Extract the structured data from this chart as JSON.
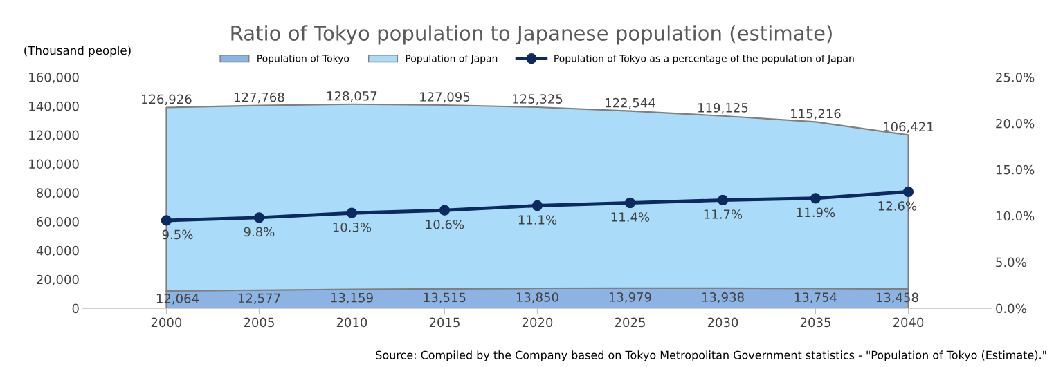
{
  "chart_data": {
    "type": "area",
    "title": "Ratio of Tokyo population to Japanese population (estimate)",
    "ylabel": "(Thousand people)",
    "categories": [
      "2000",
      "2005",
      "2010",
      "2015",
      "2020",
      "2025",
      "2030",
      "2035",
      "2040"
    ],
    "stacked": true,
    "series": [
      {
        "name": "Population of Tokyo",
        "color": "#8db3e2",
        "values": [
          12064,
          12577,
          13159,
          13515,
          13850,
          13979,
          13938,
          13754,
          13458
        ],
        "value_labels": [
          "12,064",
          "12,577",
          "13,159",
          "13,515",
          "13,850",
          "13,979",
          "13,938",
          "13,754",
          "13,458"
        ]
      },
      {
        "name": "Population of Japan",
        "color": "#aadcf9",
        "values": [
          126926,
          127768,
          128057,
          127095,
          125325,
          122544,
          119125,
          115216,
          106421
        ],
        "value_labels": [
          "126,926",
          "127,768",
          "128,057",
          "127,095",
          "125,325",
          "122,544",
          "119,125",
          "115,216",
          "106,421"
        ]
      },
      {
        "name": "Population of Tokyo as a percentage of the population of Japan",
        "type": "line",
        "axis": "y2",
        "marker": "circle",
        "color": "#0c2a5e",
        "values": [
          9.5,
          9.8,
          10.3,
          10.6,
          11.1,
          11.4,
          11.7,
          11.9,
          12.6
        ],
        "value_labels": [
          "9.5%",
          "9.8%",
          "10.3%",
          "10.6%",
          "11.1%",
          "11.4%",
          "11.7%",
          "11.9%",
          "12.6%"
        ]
      }
    ],
    "ylim": [
      0,
      160000
    ],
    "yticks": [
      {
        "value": 0,
        "label": "0"
      },
      {
        "value": 20000,
        "label": "20,000"
      },
      {
        "value": 40000,
        "label": "40,000"
      },
      {
        "value": 60000,
        "label": "60,000"
      },
      {
        "value": 80000,
        "label": "80,000"
      },
      {
        "value": 100000,
        "label": "100,000"
      },
      {
        "value": 120000,
        "label": "120,000"
      },
      {
        "value": 140000,
        "label": "140,000"
      },
      {
        "value": 160000,
        "label": "160,000"
      }
    ],
    "y2lim": [
      0,
      25
    ],
    "y2ticks": [
      {
        "value": 0,
        "label": "0.0%"
      },
      {
        "value": 5,
        "label": "5.0%"
      },
      {
        "value": 10,
        "label": "10.0%"
      },
      {
        "value": 15,
        "label": "15.0%"
      },
      {
        "value": 20,
        "label": "20.0%"
      },
      {
        "value": 25,
        "label": "25.0%"
      }
    ],
    "legend": "top",
    "grid": false,
    "annotations": [
      "Source: Compiled by the Company based on Tokyo Metropolitan Government statistics - \"Population of Tokyo (Estimate).\""
    ]
  }
}
